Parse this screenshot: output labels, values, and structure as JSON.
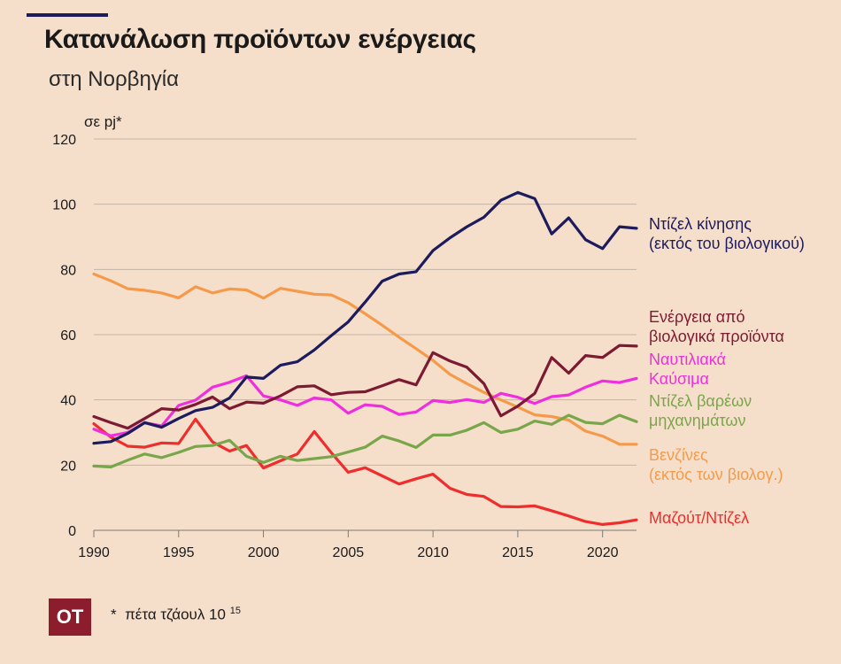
{
  "header": {
    "title": "Κατανάλωση προϊόντων ενέργειας",
    "subtitle": "στη Νορβηγία",
    "unit": "σε pj*"
  },
  "footer": {
    "logo_text": "OT",
    "note_star": "*",
    "note_text": "πέτα τζάουλ 10",
    "note_exp": "15"
  },
  "chart_data": {
    "type": "line",
    "ylim": [
      0,
      120
    ],
    "xlim": [
      1990,
      2022
    ],
    "y_ticks": [
      "0",
      "20",
      "40",
      "60",
      "80",
      "100",
      "120"
    ],
    "x_ticks": [
      "1990",
      "1995",
      "2000",
      "2005",
      "2010",
      "2015",
      "2020"
    ],
    "grid": true,
    "legend_placement": "right, at line ends",
    "x": [
      1990,
      1991,
      1992,
      1993,
      1994,
      1995,
      1996,
      1997,
      1998,
      1999,
      2000,
      2001,
      2002,
      2003,
      2004,
      2005,
      2006,
      2007,
      2008,
      2009,
      2010,
      2011,
      2012,
      2013,
      2014,
      2015,
      2016,
      2017,
      2018,
      2019,
      2020,
      2021,
      2022
    ],
    "series": [
      {
        "key": "diesel",
        "label_lines": [
          "Ντίζελ κίνησης",
          "(εκτός του βιολογικού)"
        ],
        "color": "#1c1b5e",
        "values": [
          26.7,
          27.2,
          29.7,
          33,
          31.6,
          34.3,
          36.7,
          37.7,
          40.6,
          47,
          46.6,
          50.6,
          51.7,
          55.3,
          59.7,
          63.9,
          70,
          76.4,
          78.6,
          79.3,
          85.8,
          89.7,
          93.1,
          96,
          101.2,
          103.6,
          101.7,
          90.9,
          95.8,
          89.1,
          86.4,
          93.1,
          92.6
        ]
      },
      {
        "key": "bio",
        "label_lines": [
          "Ενέργεια από",
          "βιολογικά προϊόντα"
        ],
        "color": "#7d1a33",
        "values": [
          34.9,
          33,
          31.3,
          34.3,
          37.3,
          36.9,
          38.6,
          40.9,
          37.3,
          39.3,
          39,
          41.2,
          44,
          44.3,
          41.6,
          42.3,
          42.5,
          44.3,
          46.2,
          44.6,
          54.5,
          51.9,
          50,
          45,
          35.1,
          38.1,
          42,
          53,
          48.2,
          53.6,
          53,
          56.7,
          56.5
        ]
      },
      {
        "key": "marine",
        "label_lines": [
          "Ναυτιλιακά",
          "Καύσιμα"
        ],
        "color": "#ef2fdd",
        "values": [
          31,
          29,
          30,
          33,
          32,
          38.3,
          39.9,
          43.9,
          45.4,
          47.4,
          41.2,
          40,
          38.3,
          40.6,
          40,
          35.9,
          38.5,
          38,
          35.5,
          36.3,
          39.8,
          39.2,
          40.1,
          39.2,
          42,
          40.8,
          38.9,
          41,
          41.5,
          43.9,
          45.8,
          45.3,
          46.6
        ]
      },
      {
        "key": "heavy",
        "label_lines": [
          "Ντίζελ βαρέων",
          "μηχανημάτων"
        ],
        "color": "#79a64a",
        "values": [
          19.7,
          19.4,
          21.5,
          23.4,
          22.3,
          23.9,
          25.7,
          26,
          27.6,
          22.7,
          20.8,
          22.7,
          21.4,
          22,
          22.6,
          24,
          25.5,
          28.9,
          27.4,
          25.4,
          29.2,
          29.2,
          30.7,
          33,
          30,
          31,
          33.5,
          32.5,
          35.3,
          33.1,
          32.7,
          35.3,
          33.3
        ]
      },
      {
        "key": "gasoline",
        "label_lines": [
          "Βενζίνες",
          "(εκτός των βιολογ.)"
        ],
        "color": "#f59a4b",
        "values": [
          78.6,
          76.5,
          74.1,
          73.6,
          72.8,
          71.3,
          74.7,
          72.8,
          74,
          73.7,
          71.2,
          74.2,
          73.3,
          72.4,
          72.2,
          69.8,
          66.4,
          62.9,
          59.2,
          55.7,
          52.1,
          47.8,
          45,
          42.3,
          40,
          37.8,
          35.4,
          34.9,
          33.8,
          30.4,
          28.9,
          26.4,
          26.4
        ]
      },
      {
        "key": "fuel_oil",
        "label_lines": [
          "Μαζούτ/Ντίζελ"
        ],
        "color": "#ee2d2d",
        "values": [
          32.7,
          28.6,
          25.8,
          25.5,
          26.8,
          26.6,
          34.1,
          27.1,
          24.3,
          26,
          19.1,
          21.3,
          23.4,
          30.3,
          23.8,
          17.8,
          19.2,
          16.7,
          14.2,
          15.8,
          17.2,
          12.9,
          11,
          10.4,
          7.3,
          7.2,
          7.5,
          6,
          4.4,
          2.7,
          1.8,
          2.3,
          3.2
        ]
      }
    ]
  }
}
